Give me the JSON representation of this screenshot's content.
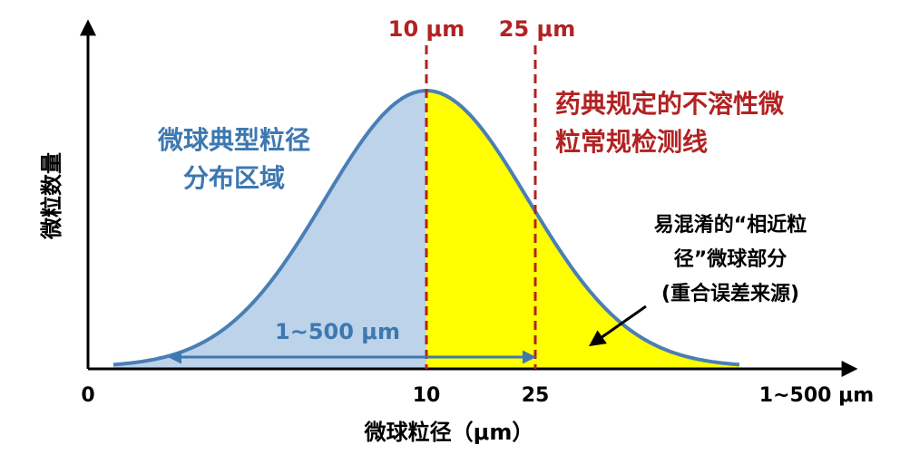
{
  "axes": {
    "y_title": "微粒数量",
    "x_title": "微球粒径（μm）",
    "x_labels": [
      "0",
      "10",
      "25",
      "1~500 μm"
    ]
  },
  "markers": [
    "10 μm",
    "25 μm"
  ],
  "annotations": {
    "typical_range": [
      "微球典型粒径",
      "分布区域"
    ],
    "detection_line": [
      "药典规定的不溶性微",
      "粒常规检测线"
    ],
    "overlap": [
      "易混淆的“相近粒",
      "径”微球部分",
      "(重合误差来源)"
    ],
    "range_span": "1~500 μm"
  }
}
